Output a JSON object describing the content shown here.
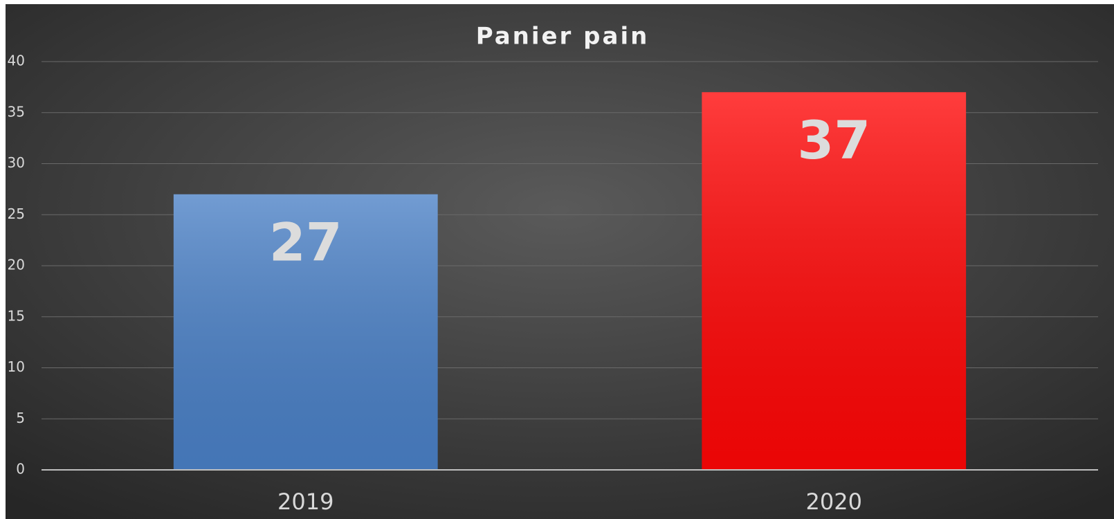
{
  "chart_data": {
    "type": "bar",
    "title": "Panier pain",
    "categories": [
      "2019",
      "2020"
    ],
    "values": [
      27,
      37
    ],
    "colors": [
      "#4a80c6",
      "#ff0606"
    ],
    "ylim": [
      0,
      40
    ],
    "yticks": [
      0,
      5,
      10,
      15,
      20,
      25,
      30,
      35,
      40
    ],
    "grid": true
  }
}
